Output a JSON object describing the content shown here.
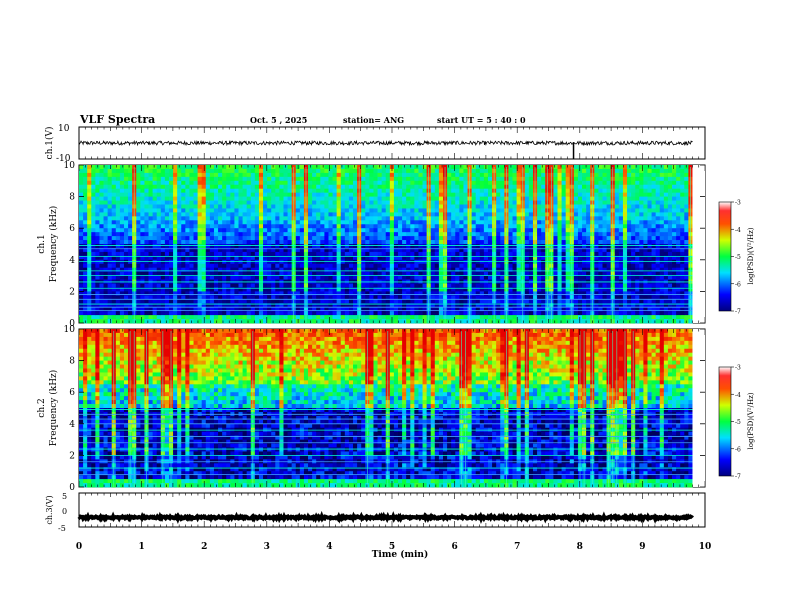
{
  "header": {
    "title": "VLF Spectra",
    "date": "Oct. 5  , 2025",
    "station": "station= ANG",
    "start": "start  UT =   5  : 40 : 0"
  },
  "chart_data": [
    {
      "type": "line",
      "panel": "ch1-waveform",
      "ylabel": "ch.1(V)",
      "ylim": [
        -10,
        10
      ],
      "yticks": [
        "10",
        "-10"
      ],
      "xlim": [
        0,
        10
      ],
      "series": [
        {
          "name": "ch.1",
          "mean": 0,
          "amplitude": 1.2,
          "spike_at_min": 7.9
        }
      ]
    },
    {
      "type": "heatmap",
      "panel": "ch1-spectrogram",
      "ylabel": "ch.1\nFrequency (kHz)",
      "ylabel_top": "ch.1",
      "ylabel_bottom": "Frequency (kHz)",
      "ylim": [
        0,
        10
      ],
      "yticks": [
        "0",
        "2",
        "4",
        "6",
        "8",
        "10"
      ],
      "xlim": [
        0,
        10
      ],
      "data_end_min": 9.8,
      "tone_lines_khz": [
        0.8,
        1.0,
        1.2,
        1.5,
        1.8,
        2.2,
        2.6,
        3.0,
        3.3,
        3.9,
        4.2,
        4.7,
        4.9
      ],
      "colorbar": {
        "label": "log(PSD)(V²/Hz)",
        "range": [
          -7,
          -3
        ],
        "ticks": [
          "-3",
          "-4",
          "-5",
          "-6",
          "-7"
        ]
      }
    },
    {
      "type": "heatmap",
      "panel": "ch2-spectrogram",
      "ylabel_top": "ch.2",
      "ylabel_bottom": "Frequency (kHz)",
      "ylim": [
        0,
        10
      ],
      "yticks": [
        "0",
        "2",
        "4",
        "6",
        "8",
        "10"
      ],
      "xlim": [
        0,
        10
      ],
      "data_end_min": 9.8,
      "tone_lines_khz": [
        0.8,
        1.2,
        1.6,
        2.0,
        2.4,
        2.8,
        3.2,
        3.6,
        4.0,
        4.3,
        4.6,
        4.9
      ],
      "colorbar": {
        "label": "log(PSD)(V²/Hz)",
        "range": [
          -7,
          -3
        ],
        "ticks": [
          "-3",
          "-4",
          "-5",
          "-6",
          "-7"
        ]
      }
    },
    {
      "type": "line",
      "panel": "ch3-waveform",
      "ylabel": "ch.3(V)",
      "ylim": [
        -5,
        5
      ],
      "yticks": [
        "5",
        "0",
        "-5"
      ],
      "xlim": [
        0,
        10
      ],
      "series": [
        {
          "name": "ch.3",
          "mean": -2.2,
          "amplitude": 0.3
        }
      ]
    }
  ],
  "xaxis": {
    "label": "Time  (min)",
    "ticks": [
      "0",
      "1",
      "2",
      "3",
      "4",
      "5",
      "6",
      "7",
      "8",
      "9",
      "10"
    ]
  }
}
